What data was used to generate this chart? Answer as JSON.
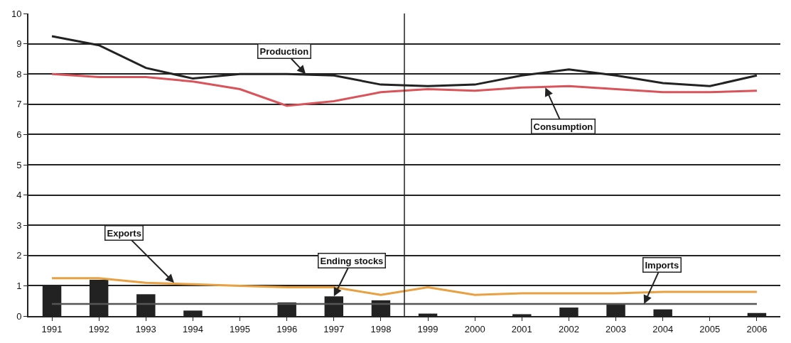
{
  "chart_data": {
    "type": "line",
    "x": [
      1991,
      1992,
      1993,
      1994,
      1995,
      1996,
      1997,
      1998,
      1999,
      2000,
      2001,
      2002,
      2003,
      2004,
      2005,
      2006
    ],
    "xlim": [
      1990.5,
      2006.5
    ],
    "xticks": [
      1991,
      1992,
      1993,
      1994,
      1995,
      1996,
      1997,
      1998,
      1999,
      2000,
      2001,
      2002,
      2003,
      2004,
      2005,
      2006
    ],
    "ylim": [
      0,
      10
    ],
    "yticks": [
      0,
      1,
      2,
      3,
      4,
      5,
      6,
      7,
      8,
      9,
      10
    ],
    "grid": "y",
    "series": [
      {
        "type": "bar",
        "color": "#222222",
        "values": [
          1.0,
          1.2,
          0.72,
          0.18,
          null,
          0.45,
          0.65,
          0.52,
          0.08,
          null,
          0.06,
          0.28,
          0.42,
          0.22,
          null,
          0.1
        ]
      },
      {
        "color": "#555555",
        "values": [
          0.4,
          0.4,
          0.4,
          0.4,
          0.4,
          0.4,
          0.4,
          0.4,
          0.4,
          0.4,
          0.4,
          0.4,
          0.4,
          0.4,
          0.4,
          0.4
        ]
      },
      {
        "color": "#e8a040",
        "values": [
          1.25,
          1.25,
          1.1,
          1.05,
          1.0,
          0.95,
          0.95,
          0.7,
          0.95,
          0.7,
          0.75,
          0.75,
          0.75,
          0.8,
          0.8,
          0.8
        ]
      },
      {
        "color": "#d9545a",
        "values": [
          8.0,
          7.9,
          7.9,
          7.75,
          7.5,
          6.95,
          7.1,
          7.4,
          7.5,
          7.45,
          7.55,
          7.6,
          7.5,
          7.4,
          7.4,
          7.45
        ]
      },
      {
        "color": "#222222",
        "values": [
          9.25,
          8.95,
          8.2,
          7.85,
          8.0,
          8.0,
          7.95,
          7.65,
          7.6,
          7.65,
          7.95,
          8.15,
          7.95,
          7.7,
          7.6,
          7.95
        ]
      }
    ],
    "ref_lines": [
      {
        "axis": "x",
        "value": 1998.5,
        "color": "#222222"
      }
    ],
    "annotations": [
      {
        "text": "Production",
        "x": 1996.4,
        "y": 8.0
      },
      {
        "text": "Consumption",
        "x": 2001.5,
        "y": 7.55
      },
      {
        "text": "Exports",
        "x": 1993.6,
        "y": 1.1
      },
      {
        "text": "Ending stocks",
        "x": 1997,
        "y": 0.65
      },
      {
        "text": "Imports",
        "x": 2003.6,
        "y": 0.4
      }
    ]
  }
}
